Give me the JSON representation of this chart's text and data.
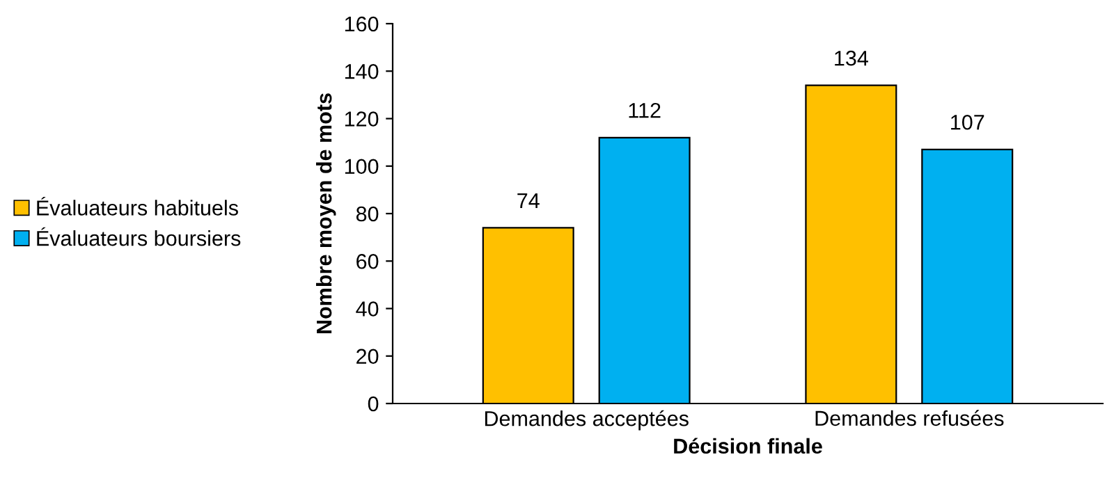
{
  "chart_data": {
    "type": "bar",
    "xlabel": "Décision finale",
    "ylabel": "Nombre moyen de mots",
    "categories": [
      "Demandes acceptées",
      "Demandes refusées"
    ],
    "series": [
      {
        "name": "Évaluateurs habituels",
        "color": "#ffc000",
        "values": [
          74,
          134
        ]
      },
      {
        "name": "Évaluateurs boursiers",
        "color": "#00b0f0",
        "values": [
          112,
          107
        ]
      }
    ],
    "ylim": [
      0,
      160
    ],
    "yticks": [
      0,
      20,
      40,
      60,
      80,
      100,
      120,
      140,
      160
    ],
    "grid": false,
    "legend": "left",
    "data_labels": true
  }
}
